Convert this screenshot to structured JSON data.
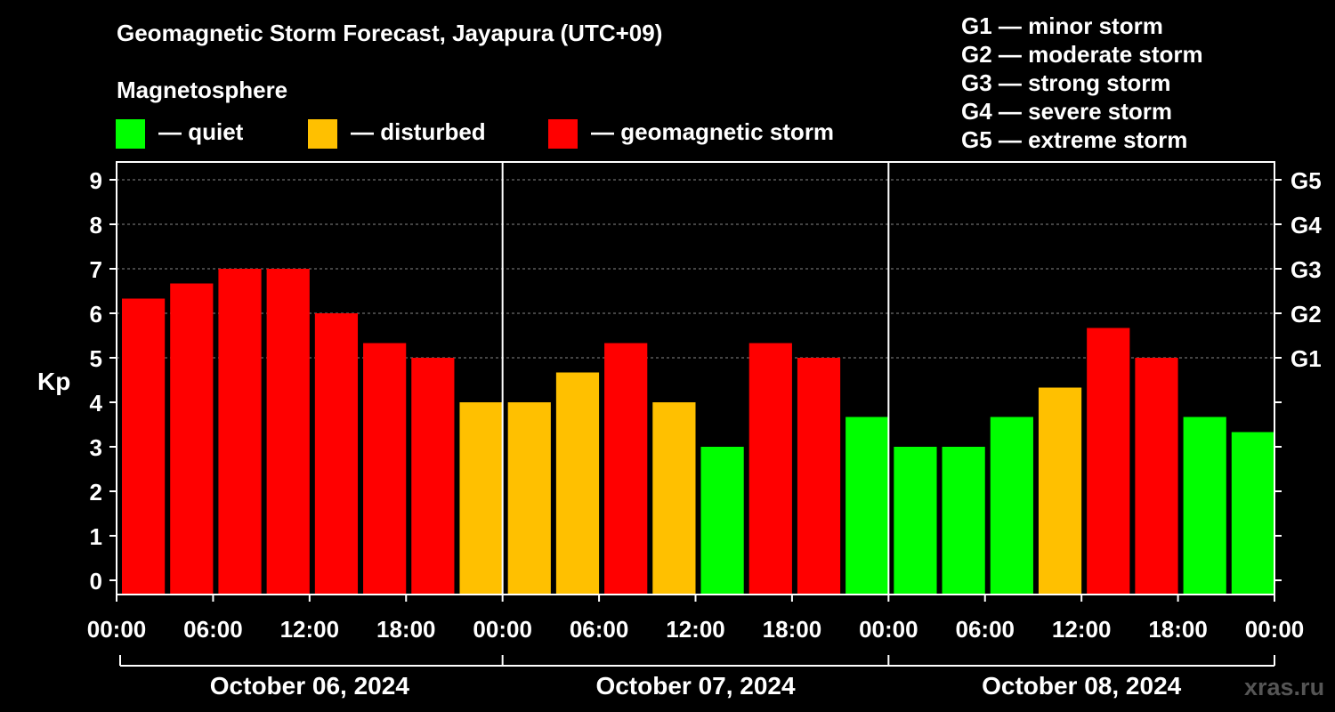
{
  "title": "Geomagnetic Storm Forecast, Jayapura (UTC+09)",
  "magnetosphere": "Magnetosphere",
  "legend": [
    {
      "label": "— quiet",
      "color": "#00ff00"
    },
    {
      "label": "— disturbed",
      "color": "#ffc000"
    },
    {
      "label": "— geomagnetic storm",
      "color": "#ff0000"
    }
  ],
  "g_scale": [
    "G1 — minor storm",
    "G2 — moderate storm",
    "G3 — strong storm",
    "G4 — severe storm",
    "G5 — extreme storm"
  ],
  "watermark": "xras.ru",
  "chart_data": {
    "type": "bar",
    "title": "Geomagnetic Storm Forecast, Jayapura (UTC+09)",
    "ylabel": "Kp",
    "ylim": [
      0,
      9
    ],
    "yticks": [
      "0",
      "1",
      "2",
      "3",
      "4",
      "5",
      "6",
      "7",
      "8",
      "9"
    ],
    "right_ticks": [
      {
        "kp": 5,
        "label": "G1"
      },
      {
        "kp": 6,
        "label": "G2"
      },
      {
        "kp": 7,
        "label": "G3"
      },
      {
        "kp": 8,
        "label": "G4"
      },
      {
        "kp": 9,
        "label": "G5"
      }
    ],
    "xticks": [
      "00:00",
      "06:00",
      "12:00",
      "18:00",
      "00:00",
      "06:00",
      "12:00",
      "18:00",
      "00:00",
      "06:00",
      "12:00",
      "18:00",
      "00:00"
    ],
    "days": [
      "October 06, 2024",
      "October 07, 2024",
      "October 08, 2024"
    ],
    "colors": {
      "quiet": "#00ff00",
      "disturbed": "#ffc000",
      "storm": "#ff0000"
    },
    "values": [
      6.33,
      6.67,
      7.0,
      7.0,
      6.0,
      5.33,
      5.0,
      4.0,
      4.0,
      4.67,
      5.33,
      4.0,
      3.0,
      5.33,
      5.0,
      3.67,
      3.0,
      3.0,
      3.67,
      4.33,
      5.67,
      5.0,
      3.67,
      3.33
    ],
    "levels": [
      "storm",
      "storm",
      "storm",
      "storm",
      "storm",
      "storm",
      "storm",
      "disturbed",
      "disturbed",
      "disturbed",
      "storm",
      "disturbed",
      "quiet",
      "storm",
      "storm",
      "quiet",
      "quiet",
      "quiet",
      "quiet",
      "disturbed",
      "storm",
      "storm",
      "quiet",
      "quiet"
    ]
  }
}
